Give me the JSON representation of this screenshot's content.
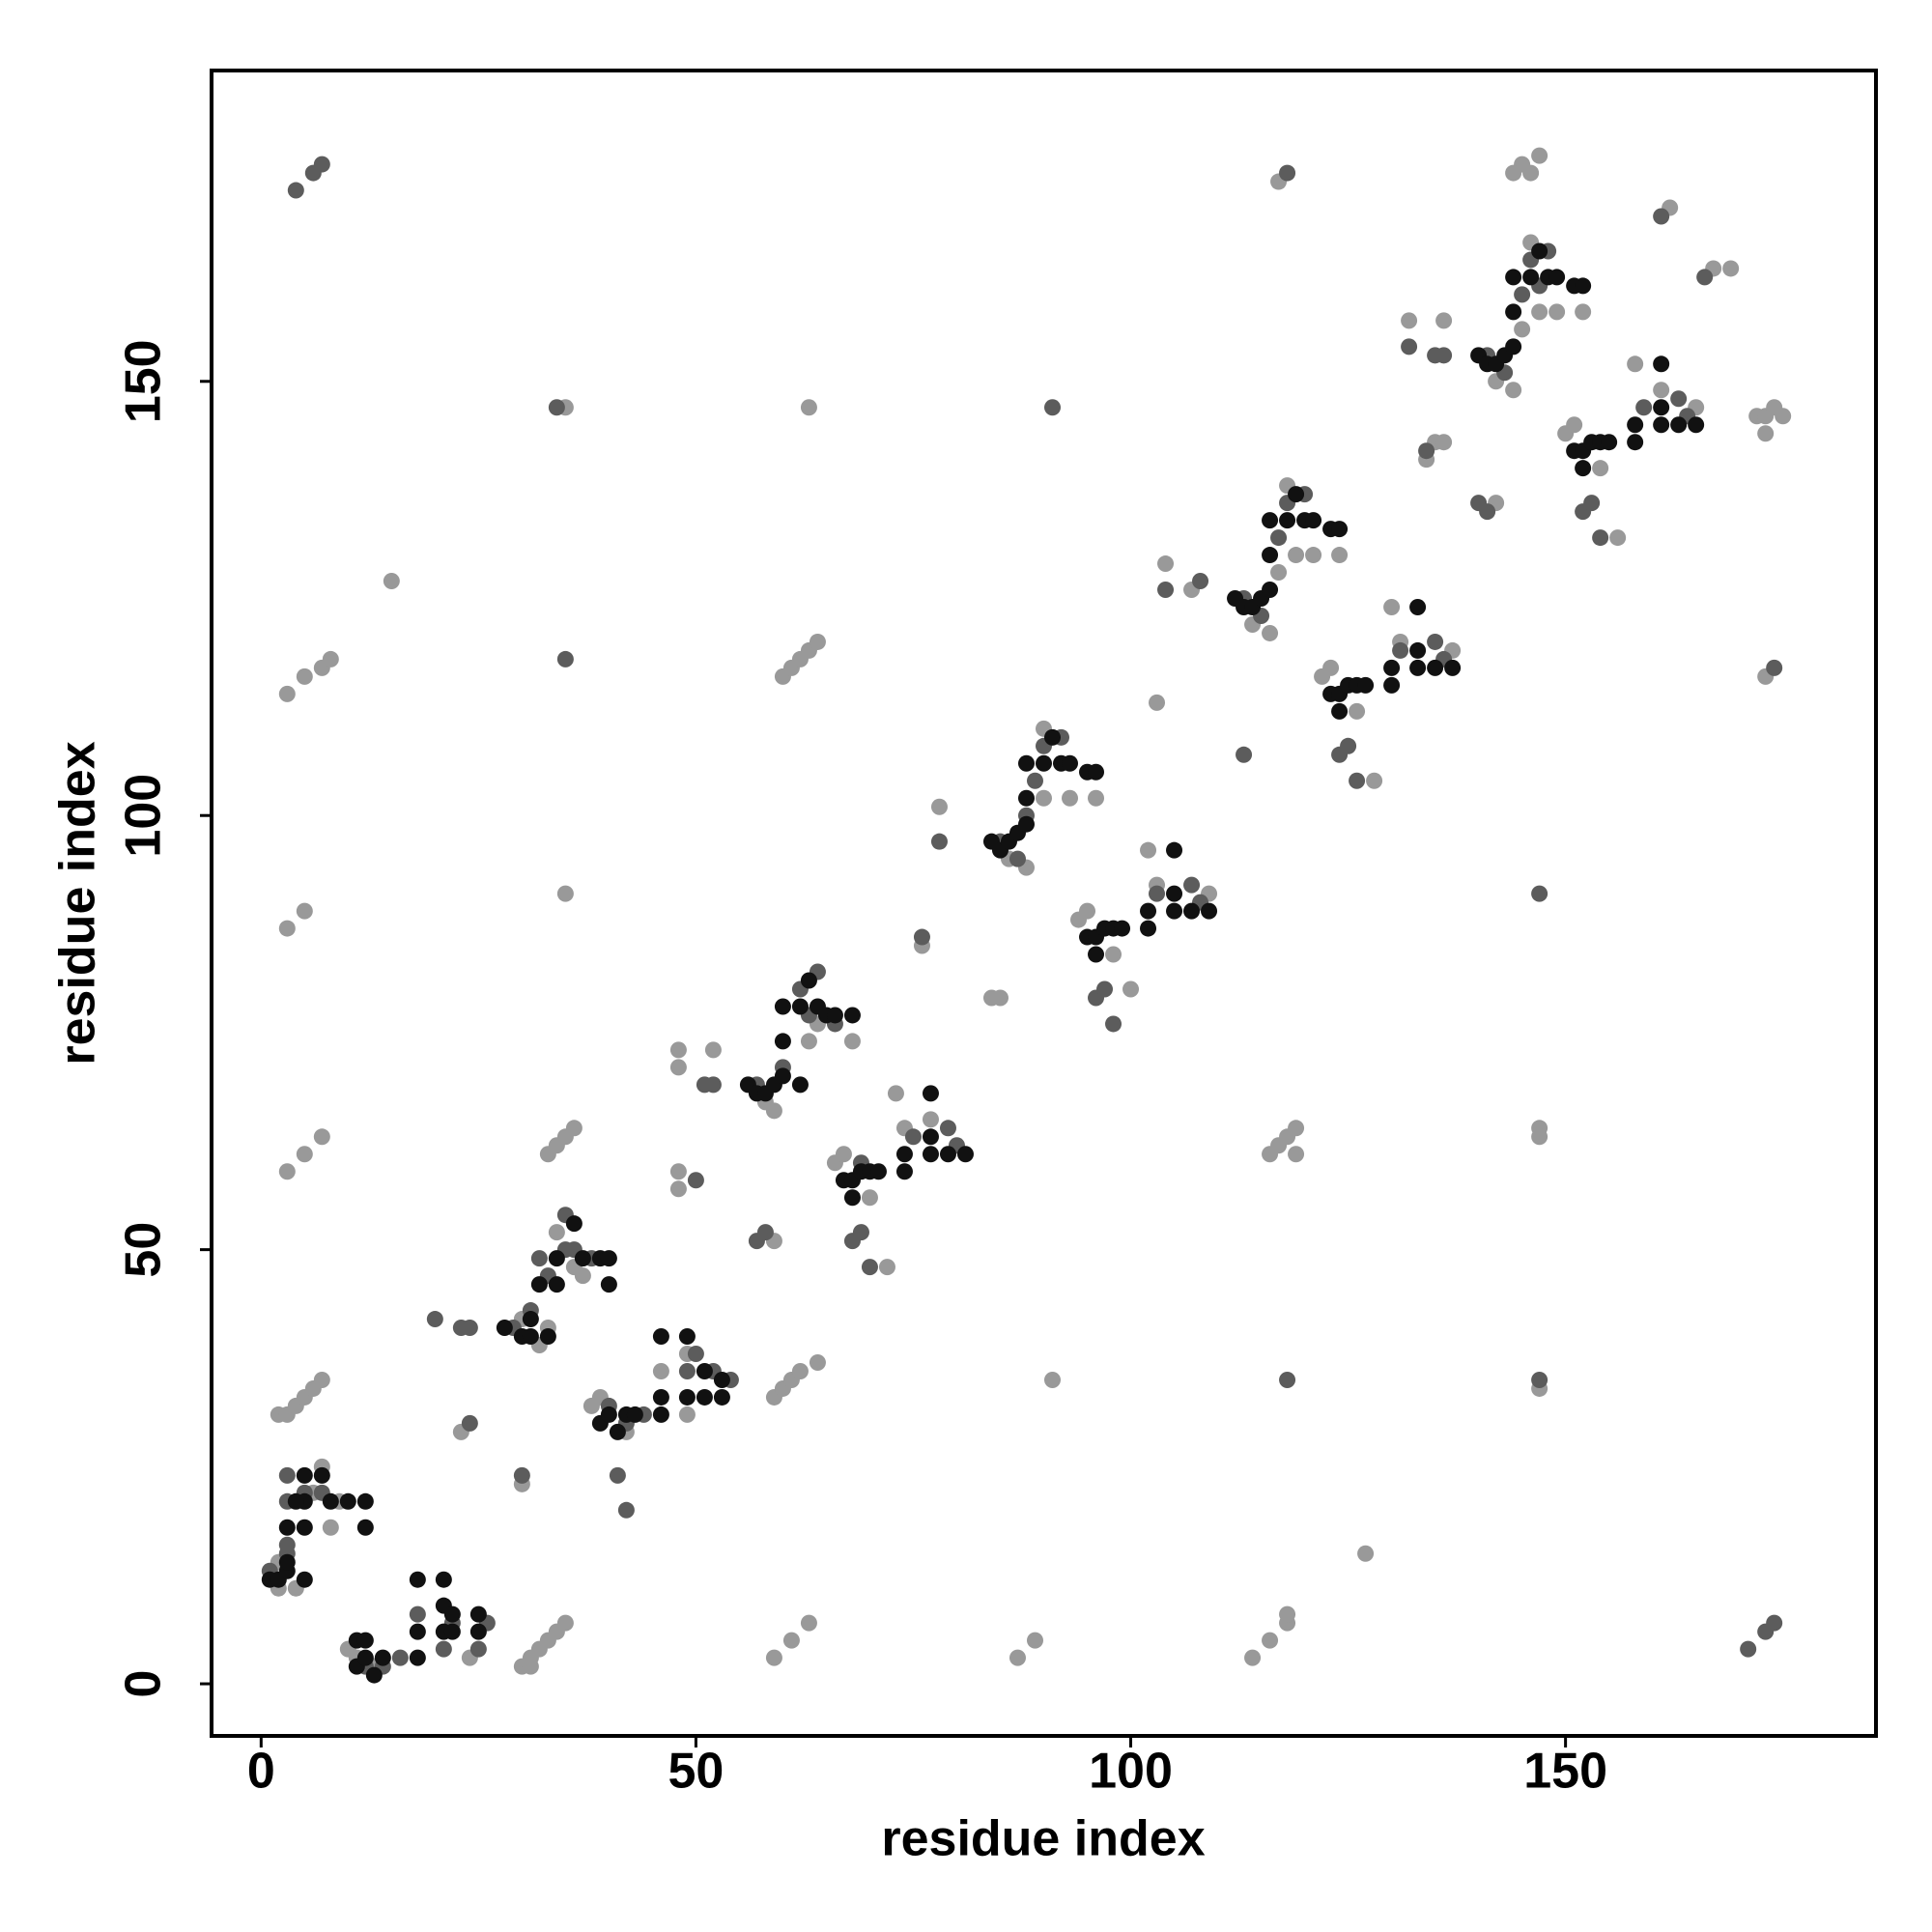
{
  "chart_data": {
    "type": "scatter",
    "xlabel": "residue index",
    "ylabel": "residue index",
    "xlim": [
      -5.7,
      185.7
    ],
    "ylim": [
      -6,
      185.8
    ],
    "xticks": [
      0,
      50,
      100,
      150
    ],
    "yticks": [
      0,
      50,
      100,
      150
    ],
    "series": [
      {
        "color": "#999999",
        "x": [
          2,
          4,
          7,
          6,
          8,
          9,
          2,
          10,
          11,
          13,
          24,
          2,
          3,
          4,
          5,
          6,
          7,
          30,
          31,
          31,
          32,
          33,
          34,
          35,
          30,
          23,
          3,
          5,
          7,
          33,
          34,
          35,
          36,
          3,
          5,
          35,
          3,
          5,
          7,
          8,
          15,
          35,
          30,
          32,
          33,
          36,
          37,
          34,
          38,
          39,
          42,
          46,
          49,
          49,
          59,
          60,
          61,
          62,
          64,
          59,
          61,
          63,
          48,
          48,
          48,
          48,
          52,
          59,
          58,
          59,
          63,
          64,
          68,
          66,
          67,
          70,
          72,
          73,
          74,
          77,
          60,
          61,
          62,
          63,
          64,
          63,
          76,
          78,
          84,
          85,
          87,
          89,
          91,
          86,
          88,
          90,
          93,
          96,
          90,
          94,
          95,
          98,
          100,
          102,
          103,
          109,
          104,
          107,
          103,
          127,
          114,
          116,
          118,
          118,
          116,
          117,
          118,
          119,
          119,
          117,
          114,
          116,
          117,
          119,
          121,
          124,
          118,
          122,
          123,
          126,
          128,
          130,
          131,
          137,
          132,
          136,
          134,
          135,
          136,
          142,
          144,
          145,
          147,
          149,
          152,
          146,
          150,
          151,
          154,
          156,
          158,
          161,
          165,
          142,
          147,
          147,
          147,
          145,
          146,
          147,
          144,
          162,
          167,
          169,
          172,
          173,
          174,
          173,
          175,
          173
        ],
        "y": [
          11,
          11,
          25,
          22,
          18,
          21,
          14,
          4,
          3,
          2,
          3,
          31,
          31,
          32,
          33,
          34,
          35,
          2,
          2,
          3,
          4,
          5,
          6,
          7,
          23,
          29,
          59,
          61,
          63,
          61,
          62,
          63,
          64,
          87,
          89,
          91,
          114,
          116,
          117,
          118,
          127,
          147,
          42,
          39,
          41,
          48,
          47,
          52,
          32,
          33,
          29,
          36,
          31,
          38,
          33,
          34,
          35,
          36,
          37,
          3,
          5,
          7,
          57,
          59,
          71,
          73,
          73,
          51,
          67,
          66,
          74,
          76,
          74,
          60,
          61,
          56,
          48,
          68,
          64,
          65,
          116,
          117,
          118,
          119,
          120,
          147,
          85,
          101,
          79,
          79,
          3,
          5,
          35,
          95,
          94,
          102,
          102,
          102,
          110,
          88,
          89,
          84,
          80,
          96,
          92,
          91,
          129,
          126,
          113,
          15,
          3,
          5,
          7,
          8,
          61,
          62,
          63,
          64,
          61,
          173,
          122,
          121,
          128,
          130,
          130,
          130,
          138,
          116,
          117,
          112,
          104,
          124,
          120,
          119,
          157,
          157,
          141,
          143,
          143,
          150,
          149,
          156,
          158,
          158,
          158,
          166,
          144,
          145,
          140,
          132,
          152,
          149,
          147,
          136,
          64,
          63,
          34,
          175,
          174,
          176,
          174,
          170,
          163,
          163,
          146,
          146,
          147,
          144,
          146,
          116
        ]
      },
      {
        "color": "#5c5c5c",
        "x": [
          1,
          3,
          3,
          3,
          5,
          7,
          3,
          12,
          14,
          16,
          18,
          21,
          22,
          25,
          26,
          30,
          24,
          20,
          23,
          24,
          35,
          4,
          6,
          7,
          34,
          29,
          31,
          32,
          35,
          35,
          36,
          33,
          38,
          41,
          42,
          40,
          42,
          44,
          49,
          50,
          52,
          54,
          50,
          51,
          52,
          57,
          58,
          57,
          60,
          62,
          64,
          63,
          66,
          68,
          69,
          70,
          75,
          79,
          80,
          69,
          76,
          78,
          91,
          85,
          87,
          89,
          90,
          92,
          88,
          96,
          97,
          98,
          103,
          107,
          108,
          104,
          108,
          113,
          118,
          118,
          113,
          115,
          117,
          118,
          120,
          124,
          125,
          126,
          131,
          135,
          136,
          132,
          135,
          136,
          134,
          141,
          143,
          145,
          146,
          148,
          147,
          152,
          153,
          154,
          159,
          163,
          164,
          140,
          141,
          147,
          147,
          161,
          166,
          174,
          171,
          173,
          174
        ],
        "y": [
          13,
          15,
          24,
          21,
          22,
          22,
          16,
          2,
          2,
          3,
          8,
          4,
          7,
          4,
          7,
          24,
          30,
          42,
          41,
          41,
          118,
          172,
          174,
          175,
          147,
          41,
          43,
          49,
          50,
          54,
          50,
          47,
          49,
          24,
          20,
          32,
          30,
          31,
          36,
          38,
          36,
          35,
          58,
          69,
          69,
          51,
          52,
          69,
          71,
          80,
          82,
          77,
          76,
          51,
          52,
          48,
          63,
          64,
          62,
          60,
          86,
          97,
          147,
          97,
          95,
          104,
          108,
          109,
          100,
          79,
          80,
          76,
          91,
          92,
          90,
          126,
          127,
          107,
          35,
          174,
          125,
          123,
          132,
          136,
          137,
          107,
          108,
          104,
          119,
          120,
          118,
          154,
          153,
          153,
          142,
          153,
          151,
          160,
          164,
          165,
          161,
          135,
          136,
          132,
          147,
          148,
          146,
          136,
          135,
          91,
          35,
          169,
          162,
          117,
          4,
          6,
          7
        ]
      },
      {
        "color": "#111111",
        "x": [
          1,
          2,
          3,
          3,
          5,
          3,
          5,
          5,
          5,
          7,
          8,
          10,
          12,
          12,
          4,
          11,
          11,
          12,
          13,
          12,
          14,
          18,
          18,
          21,
          21,
          21,
          22,
          22,
          25,
          25,
          18,
          28,
          30,
          31,
          31,
          32,
          33,
          34,
          34,
          36,
          37,
          39,
          40,
          40,
          39,
          40,
          41,
          42,
          43,
          46,
          46,
          46,
          49,
          49,
          51,
          51,
          53,
          53,
          56,
          57,
          58,
          59,
          60,
          60,
          60,
          62,
          63,
          64,
          65,
          66,
          68,
          62,
          67,
          68,
          69,
          70,
          71,
          74,
          74,
          77,
          77,
          77,
          79,
          81,
          68,
          84,
          85,
          86,
          87,
          88,
          88,
          88,
          90,
          91,
          92,
          93,
          95,
          96,
          95,
          96,
          97,
          98,
          99,
          102,
          102,
          105,
          105,
          105,
          107,
          109,
          96,
          112,
          113,
          114,
          115,
          116,
          116,
          116,
          118,
          119,
          120,
          121,
          123,
          124,
          123,
          124,
          125,
          126,
          127,
          130,
          130,
          133,
          133,
          133,
          135,
          137,
          124,
          140,
          141,
          142,
          143,
          144,
          144,
          144,
          146,
          147,
          148,
          149,
          151,
          152,
          151,
          152,
          153,
          154,
          155,
          158,
          158,
          161,
          161,
          161,
          163,
          165,
          152
        ],
        "y": [
          12,
          12,
          13,
          14,
          12,
          18,
          18,
          21,
          24,
          24,
          21,
          21,
          21,
          18,
          21,
          2,
          5,
          5,
          1,
          3,
          3,
          3,
          12,
          12,
          9,
          6,
          6,
          8,
          6,
          8,
          6,
          41,
          40,
          40,
          42,
          46,
          40,
          46,
          49,
          53,
          49,
          49,
          49,
          46,
          30,
          31,
          29,
          31,
          31,
          31,
          33,
          40,
          40,
          33,
          33,
          36,
          33,
          35,
          69,
          68,
          68,
          69,
          70,
          74,
          78,
          78,
          81,
          78,
          77,
          77,
          77,
          69,
          58,
          58,
          59,
          59,
          59,
          59,
          61,
          68,
          63,
          61,
          61,
          61,
          56,
          97,
          96,
          97,
          98,
          99,
          102,
          106,
          106,
          109,
          106,
          106,
          105,
          105,
          86,
          86,
          87,
          87,
          87,
          87,
          89,
          96,
          91,
          89,
          89,
          89,
          84,
          125,
          124,
          124,
          125,
          126,
          130,
          134,
          134,
          137,
          134,
          134,
          133,
          133,
          114,
          114,
          115,
          115,
          115,
          115,
          117,
          124,
          119,
          117,
          117,
          117,
          112,
          153,
          152,
          152,
          153,
          154,
          158,
          162,
          162,
          165,
          162,
          162,
          161,
          161,
          142,
          142,
          143,
          143,
          143,
          143,
          145,
          152,
          147,
          145,
          145,
          145,
          140
        ]
      }
    ]
  }
}
